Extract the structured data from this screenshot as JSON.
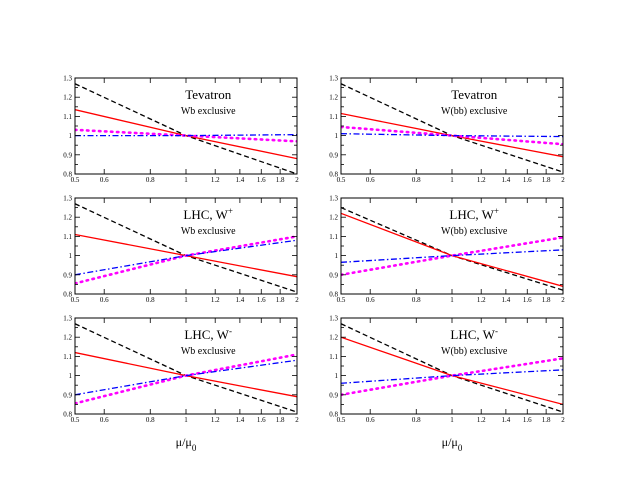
{
  "chart_data": {
    "type": "line",
    "xlabel": "μ/μ",
    "xlabel_sub": "0",
    "x_scale": "log",
    "xlim": [
      0.5,
      2
    ],
    "ylim": [
      0.8,
      1.3
    ],
    "x_ticks": [
      0.5,
      0.6,
      0.8,
      1,
      1.2,
      1.4,
      1.6,
      1.8,
      2
    ],
    "x_tick_labels": [
      "0.5",
      "0.6",
      "0.8",
      "1",
      "1.2",
      "1.4",
      "1.6",
      "1.8",
      "2"
    ],
    "y_ticks": [
      0.8,
      0.9,
      1.0,
      1.1,
      1.2,
      1.3
    ],
    "y_tick_labels": [
      "0.8",
      "0.9",
      "1",
      "1.1",
      "1.2",
      "1.3"
    ],
    "series_styles": [
      {
        "key": "black_dashed",
        "color": "#000000",
        "dash": "5,3"
      },
      {
        "key": "red_solid",
        "color": "#ff0000",
        "dash": ""
      },
      {
        "key": "magenta_dotted",
        "color": "#ff00ff",
        "dash": "1.5,4.5"
      },
      {
        "key": "blue_dashdot",
        "color": "#0000ff",
        "dash": "6,2.5,1.5,2.5"
      }
    ],
    "panels": [
      {
        "title": "Tevatron",
        "title_sup": "",
        "subtitle": "Wb exclusive",
        "x": [
          0.5,
          1,
          2
        ],
        "series": [
          {
            "key": "black_dashed",
            "values": [
              1.27,
              1.0,
              0.8
            ]
          },
          {
            "key": "red_solid",
            "values": [
              1.135,
              1.0,
              0.88
            ]
          },
          {
            "key": "magenta_dotted",
            "values": [
              1.03,
              1.0,
              0.97
            ]
          },
          {
            "key": "blue_dashdot",
            "values": [
              1.0,
              1.0,
              1.005
            ]
          }
        ]
      },
      {
        "title": "Tevatron",
        "title_sup": "",
        "subtitle": "W(bb) exclusive",
        "x": [
          0.5,
          1,
          2
        ],
        "series": [
          {
            "key": "black_dashed",
            "values": [
              1.27,
              1.0,
              0.81
            ]
          },
          {
            "key": "red_solid",
            "values": [
              1.115,
              1.0,
              0.89
            ]
          },
          {
            "key": "magenta_dotted",
            "values": [
              1.045,
              1.0,
              0.955
            ]
          },
          {
            "key": "blue_dashdot",
            "values": [
              1.01,
              1.0,
              0.995
            ]
          }
        ]
      },
      {
        "title": "LHC, W",
        "title_sup": "+",
        "subtitle": "Wb exclusive",
        "x": [
          0.5,
          1,
          2
        ],
        "series": [
          {
            "key": "black_dashed",
            "values": [
              1.27,
              1.0,
              0.81
            ]
          },
          {
            "key": "red_solid",
            "values": [
              1.11,
              1.0,
              0.89
            ]
          },
          {
            "key": "magenta_dotted",
            "values": [
              0.855,
              1.0,
              1.1
            ]
          },
          {
            "key": "blue_dashdot",
            "values": [
              0.9,
              1.0,
              1.08
            ]
          }
        ]
      },
      {
        "title": "LHC, W",
        "title_sup": "+",
        "subtitle": "W(bb) exclusive",
        "x": [
          0.5,
          1,
          2
        ],
        "series": [
          {
            "key": "black_dashed",
            "values": [
              1.25,
              1.0,
              0.82
            ]
          },
          {
            "key": "red_solid",
            "values": [
              1.22,
              1.0,
              0.84
            ]
          },
          {
            "key": "magenta_dotted",
            "values": [
              0.9,
              1.0,
              1.095
            ]
          },
          {
            "key": "blue_dashdot",
            "values": [
              0.965,
              1.0,
              1.03
            ]
          }
        ]
      },
      {
        "title": "LHC, W",
        "title_sup": "-",
        "subtitle": "Wb exclusive",
        "x": [
          0.5,
          1,
          2
        ],
        "series": [
          {
            "key": "black_dashed",
            "values": [
              1.27,
              1.0,
              0.81
            ]
          },
          {
            "key": "red_solid",
            "values": [
              1.12,
              1.0,
              0.89
            ]
          },
          {
            "key": "magenta_dotted",
            "values": [
              0.855,
              1.0,
              1.11
            ]
          },
          {
            "key": "blue_dashdot",
            "values": [
              0.9,
              1.0,
              1.08
            ]
          }
        ]
      },
      {
        "title": "LHC, W",
        "title_sup": "-",
        "subtitle": "W(bb) exclusive",
        "x": [
          0.5,
          1,
          2
        ],
        "series": [
          {
            "key": "black_dashed",
            "values": [
              1.27,
              1.0,
              0.81
            ]
          },
          {
            "key": "red_solid",
            "values": [
              1.2,
              1.0,
              0.85
            ]
          },
          {
            "key": "magenta_dotted",
            "values": [
              0.9,
              1.0,
              1.09
            ]
          },
          {
            "key": "blue_dashdot",
            "values": [
              0.96,
              1.0,
              1.03
            ]
          }
        ]
      }
    ]
  }
}
